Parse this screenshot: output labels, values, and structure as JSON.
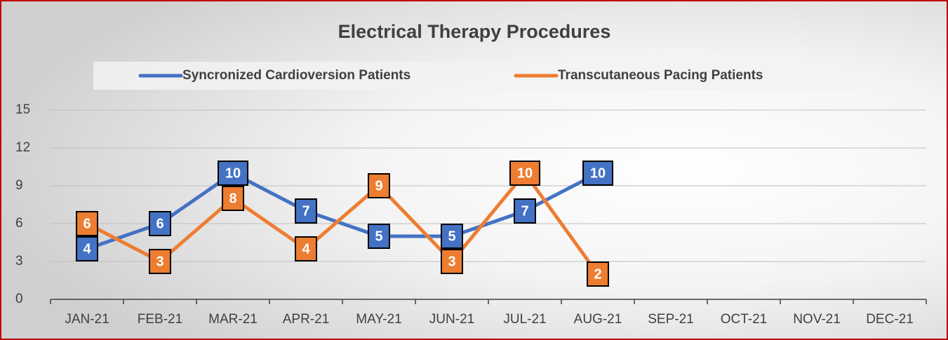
{
  "chart_data": {
    "type": "line",
    "title": "Electrical Therapy Procedures",
    "categories": [
      "JAN-21",
      "FEB-21",
      "MAR-21",
      "APR-21",
      "MAY-21",
      "JUN-21",
      "JUL-21",
      "AUG-21",
      "SEP-21",
      "OCT-21",
      "NOV-21",
      "DEC-21"
    ],
    "series": [
      {
        "name": "Syncronized Cardioversion Patients",
        "color": "#4472c4",
        "values": [
          4,
          6,
          10,
          7,
          5,
          5,
          7,
          10,
          null,
          null,
          null,
          null
        ]
      },
      {
        "name": "Transcutaneous Pacing Patients",
        "color": "#ed7d31",
        "values": [
          6,
          3,
          8,
          4,
          9,
          3,
          10,
          2,
          null,
          null,
          null,
          null
        ]
      }
    ],
    "ylim": [
      0,
      15
    ],
    "yticks": [
      0,
      3,
      6,
      9,
      12,
      15
    ],
    "grid": true,
    "legend": "top",
    "data_labels": true
  }
}
